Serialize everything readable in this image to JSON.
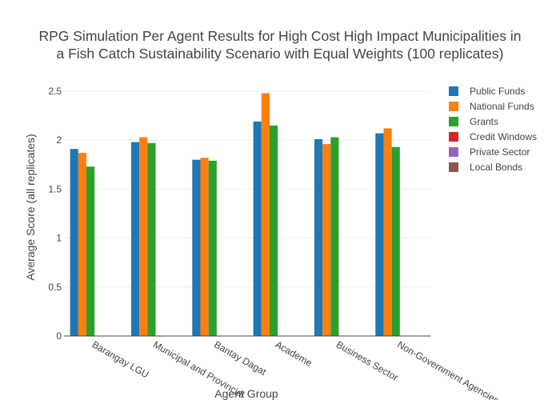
{
  "chart_data": {
    "type": "bar",
    "title_lines": [
      "RPG Simulation Per Agent Results for High Cost High Impact Municipalities in",
      "a Fish Catch Sustainability Scenario with Equal Weights (100 replicates)"
    ],
    "xlabel": "Agent Group",
    "ylabel": "Average Score (all replicates)",
    "ylim": [
      0,
      2.6
    ],
    "yticks": [
      0,
      0.5,
      1,
      1.5,
      2,
      2.5
    ],
    "ytick_labels": [
      "0",
      "0.5",
      "1",
      "1.5",
      "2",
      "2.5"
    ],
    "grid": true,
    "legend_position": "right",
    "categories": [
      "Barangay LGU",
      "Municipal and Provincial",
      "Bantay Dagat",
      "Academe",
      "Business Sector",
      "Non-Government Agencies"
    ],
    "series": [
      {
        "name": "Public Funds",
        "color": "#1f77b4",
        "values": [
          1.91,
          1.98,
          1.8,
          2.19,
          2.01,
          2.07
        ]
      },
      {
        "name": "National Funds",
        "color": "#ff7f0e",
        "values": [
          1.87,
          2.03,
          1.82,
          2.48,
          1.96,
          2.12
        ]
      },
      {
        "name": "Grants",
        "color": "#2ca02c",
        "values": [
          1.73,
          1.97,
          1.79,
          2.15,
          2.03,
          1.93
        ]
      },
      {
        "name": "Credit Windows",
        "color": "#d62728",
        "values": [
          0,
          0,
          0,
          0,
          0,
          0
        ]
      },
      {
        "name": "Private Sector",
        "color": "#9467bd",
        "values": [
          0,
          0,
          0,
          0,
          0,
          0
        ]
      },
      {
        "name": "Local Bonds",
        "color": "#8c564b",
        "values": [
          0,
          0,
          0,
          0,
          0,
          0
        ]
      }
    ]
  }
}
